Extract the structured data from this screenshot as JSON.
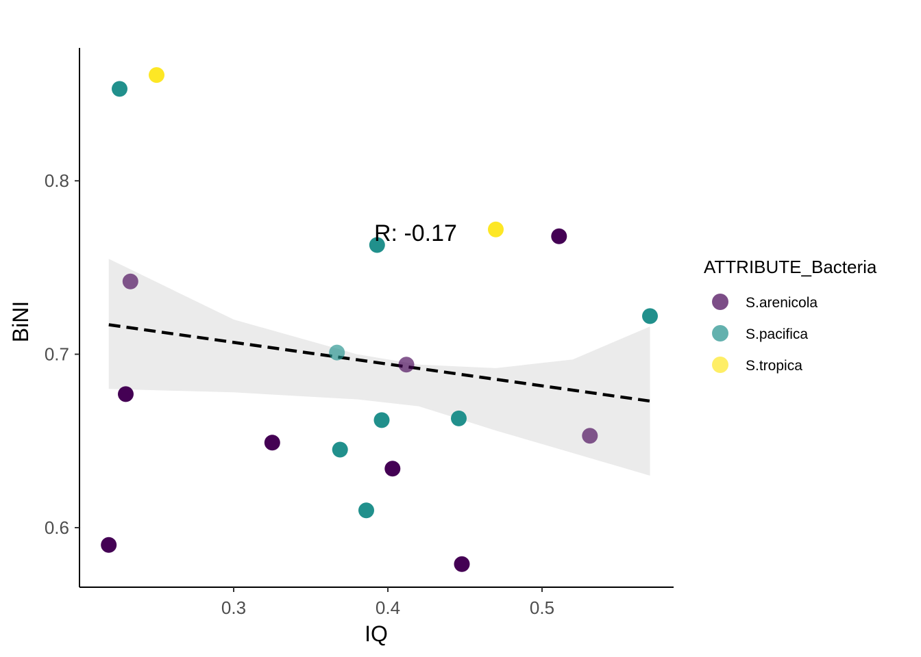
{
  "chart_data": {
    "type": "scatter",
    "xlabel": "IQ",
    "ylabel": "BiNI",
    "xlim": [
      0.205,
      0.575
    ],
    "ylim": [
      0.565,
      0.875
    ],
    "x_ticks": [
      0.3,
      0.4,
      0.5
    ],
    "x_tick_labels": [
      "0.3",
      "0.4",
      "0.5"
    ],
    "y_ticks": [
      0.6,
      0.7,
      0.8
    ],
    "y_tick_labels": [
      "0.6",
      "0.7",
      "0.8"
    ],
    "grid": false,
    "annotation": {
      "text": "R:  -0.17",
      "x": 0.4,
      "y": 0.77
    },
    "legend": {
      "title": "ATTRIBUTE_Bacteria",
      "placement": "right",
      "entries": [
        {
          "label": "S.arenicola",
          "color": "#440154"
        },
        {
          "label": "S.pacifica",
          "color": "#21908C"
        },
        {
          "label": "S.tropica",
          "color": "#FDE725"
        }
      ]
    },
    "series": [
      {
        "name": "S.arenicola",
        "color": "#440154",
        "points": [
          [
            0.219,
            0.59
          ],
          [
            0.23,
            0.677
          ],
          [
            0.233,
            0.742
          ],
          [
            0.325,
            0.649
          ],
          [
            0.403,
            0.634
          ],
          [
            0.412,
            0.694
          ],
          [
            0.448,
            0.579
          ],
          [
            0.511,
            0.768
          ],
          [
            0.531,
            0.653
          ]
        ],
        "alpha": [
          1,
          1,
          0.65,
          1,
          1,
          0.65,
          1,
          1,
          0.65
        ]
      },
      {
        "name": "S.pacifica",
        "color": "#21908C",
        "points": [
          [
            0.226,
            0.853
          ],
          [
            0.367,
            0.701
          ],
          [
            0.369,
            0.645
          ],
          [
            0.386,
            0.61
          ],
          [
            0.393,
            0.763
          ],
          [
            0.396,
            0.662
          ],
          [
            0.446,
            0.663
          ],
          [
            0.57,
            0.722
          ]
        ],
        "alpha": [
          1,
          0.65,
          1,
          1,
          1,
          1,
          1,
          1
        ]
      },
      {
        "name": "S.tropica",
        "color": "#FDE725",
        "points": [
          [
            0.25,
            0.861
          ],
          [
            0.47,
            0.772
          ]
        ],
        "alpha": [
          1,
          1
        ]
      }
    ],
    "regression": {
      "x": [
        0.219,
        0.57
      ],
      "y": [
        0.717,
        0.673
      ],
      "style": "dashed",
      "color": "#000000",
      "ci_color": "#EBEBEB",
      "ci_upper": [
        [
          0.219,
          0.755
        ],
        [
          0.3,
          0.72
        ],
        [
          0.38,
          0.7
        ],
        [
          0.42,
          0.694
        ],
        [
          0.47,
          0.692
        ],
        [
          0.52,
          0.697
        ],
        [
          0.57,
          0.716
        ]
      ],
      "ci_lower": [
        [
          0.219,
          0.68
        ],
        [
          0.3,
          0.678
        ],
        [
          0.38,
          0.674
        ],
        [
          0.42,
          0.67
        ],
        [
          0.47,
          0.656
        ],
        [
          0.52,
          0.643
        ],
        [
          0.57,
          0.63
        ]
      ]
    }
  }
}
